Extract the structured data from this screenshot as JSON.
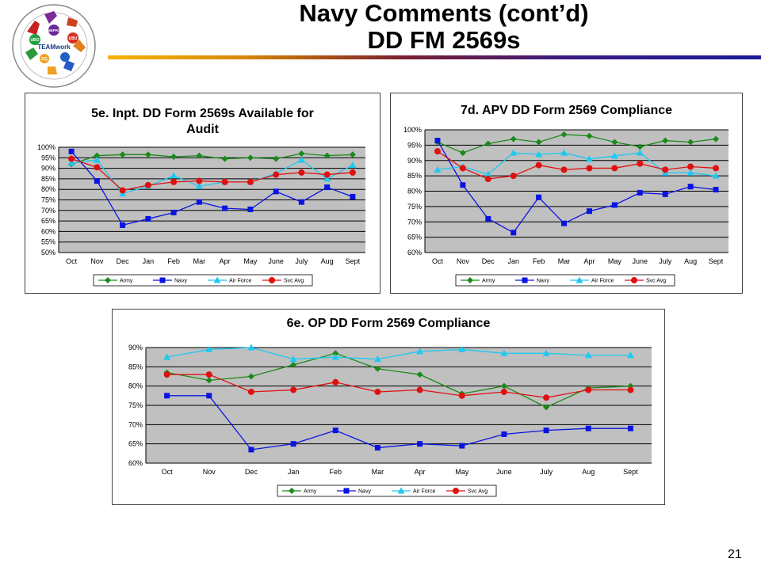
{
  "slide": {
    "title_line1": "Navy Comments (cont’d)",
    "title_line2": "DD FM 2569s",
    "page_number": "21",
    "logo_text": "TEAMwork",
    "logo_labels": [
      "UBO",
      "MEPRS",
      "UBU",
      "DQ"
    ]
  },
  "legend_series": [
    "Army",
    "Navy",
    "Air Force",
    "Svc Avg"
  ],
  "colors": {
    "Army": "#1a8a1a",
    "Navy": "#0a14e0",
    "Air Force": "#1ec8f0",
    "Svc Avg": "#e01010",
    "plot_bg": "#c0c0c0"
  },
  "chart_data": [
    {
      "id": "c1",
      "type": "line",
      "title": "5e. Inpt. DD Form 2569s Available for Audit",
      "categories": [
        "Oct",
        "Nov",
        "Dec",
        "Jan",
        "Feb",
        "Mar",
        "Apr",
        "May",
        "June",
        "July",
        "Aug",
        "Sept"
      ],
      "ylim": [
        50,
        100
      ],
      "yticks": [
        "50%",
        "55%",
        "60%",
        "65%",
        "70%",
        "75%",
        "80%",
        "85%",
        "90%",
        "95%",
        "100%"
      ],
      "grid": true,
      "legend_position": "bottom",
      "series": [
        {
          "name": "Army",
          "values": [
            92,
            96,
            96.5,
            96.5,
            95.5,
            96,
            94.5,
            95,
            94.5,
            97,
            96,
            96.5
          ]
        },
        {
          "name": "Navy",
          "values": [
            98,
            84,
            63,
            66,
            69,
            74,
            71,
            70.5,
            79,
            74,
            81,
            76.5
          ]
        },
        {
          "name": "Air Force",
          "values": [
            92.5,
            94,
            78,
            81.5,
            86.5,
            81.5,
            83.5,
            83.5,
            87.5,
            94,
            85,
            91.5
          ]
        },
        {
          "name": "Svc Avg",
          "values": [
            94.5,
            90.5,
            79.5,
            82,
            83.5,
            84,
            83.5,
            83.5,
            87,
            88,
            87,
            88
          ]
        }
      ]
    },
    {
      "id": "c2",
      "type": "line",
      "title": "7d. APV DD Form 2569 Compliance",
      "categories": [
        "Oct",
        "Nov",
        "Dec",
        "Jan",
        "Feb",
        "Mar",
        "Apr",
        "May",
        "June",
        "July",
        "Aug",
        "Sept"
      ],
      "ylim": [
        60,
        100
      ],
      "yticks": [
        "60%",
        "65%",
        "70%",
        "75%",
        "80%",
        "85%",
        "90%",
        "95%",
        "100%"
      ],
      "grid": true,
      "legend_position": "bottom",
      "series": [
        {
          "name": "Army",
          "values": [
            96,
            92.5,
            95.5,
            97,
            96,
            98.5,
            98,
            96,
            94.5,
            96.5,
            96,
            97
          ]
        },
        {
          "name": "Navy",
          "values": [
            96.5,
            82,
            71,
            66.5,
            78,
            69.5,
            73.5,
            75.5,
            79.5,
            79,
            81.5,
            80.5
          ]
        },
        {
          "name": "Air Force",
          "values": [
            87,
            88,
            85.5,
            92.5,
            92,
            92.5,
            90.5,
            91.5,
            92.5,
            86,
            86,
            85
          ]
        },
        {
          "name": "Svc Avg",
          "values": [
            93,
            87.5,
            84,
            85,
            88.5,
            87,
            87.5,
            87.5,
            89,
            87,
            88,
            87.5
          ]
        }
      ]
    },
    {
      "id": "c3",
      "type": "line",
      "title": "6e. OP DD Form 2569 Compliance",
      "categories": [
        "Oct",
        "Nov",
        "Dec",
        "Jan",
        "Feb",
        "Mar",
        "Apr",
        "May",
        "June",
        "July",
        "Aug",
        "Sept"
      ],
      "ylim": [
        60,
        90
      ],
      "yticks": [
        "60%",
        "65%",
        "70%",
        "75%",
        "80%",
        "85%",
        "90%"
      ],
      "grid": true,
      "legend_position": "bottom",
      "series": [
        {
          "name": "Army",
          "values": [
            83.5,
            81.5,
            82.5,
            85.5,
            88.5,
            84.5,
            83,
            78,
            80,
            74.5,
            79.5,
            80
          ]
        },
        {
          "name": "Navy",
          "values": [
            77.5,
            77.5,
            63.5,
            65,
            68.5,
            64,
            65,
            64.5,
            67.5,
            68.5,
            69,
            69
          ]
        },
        {
          "name": "Air Force",
          "values": [
            87.5,
            89.5,
            90.5,
            87,
            87.5,
            87,
            89,
            89.5,
            88.5,
            88.5,
            88,
            88
          ]
        },
        {
          "name": "Svc Avg",
          "values": [
            83,
            83,
            78.5,
            79,
            81,
            78.5,
            79,
            77.5,
            78.5,
            77,
            79,
            79
          ]
        }
      ]
    }
  ]
}
